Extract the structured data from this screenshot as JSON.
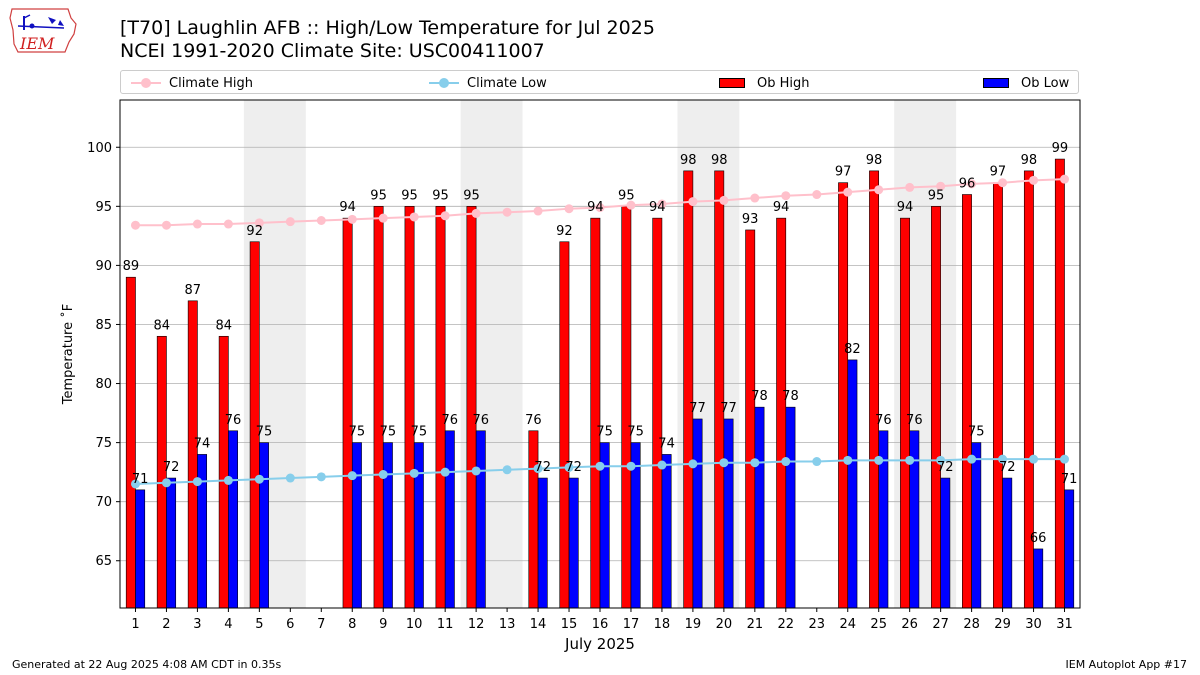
{
  "header": {
    "title_line1": "[T70] Laughlin AFB :: High/Low Temperature for Jul 2025",
    "title_line2": "NCEI 1991-2020 Climate Site: USC00411007"
  },
  "logo": {
    "text": "IEM"
  },
  "legend": {
    "climate_high": "Climate High",
    "climate_low": "Climate Low",
    "ob_high": "Ob High",
    "ob_low": "Ob Low"
  },
  "footer": {
    "generated": "Generated at 22 Aug 2025 4:08 AM CDT in 0.35s",
    "app": "IEM Autoplot App #17"
  },
  "colors": {
    "ob_high": "#ff0000",
    "ob_low": "#0000ff",
    "climate_high": "#ffc0cb",
    "climate_low": "#87ceeb",
    "weekend_shade": "#eeeeee",
    "grid": "#b0b0b0"
  },
  "chart_data": {
    "type": "bar",
    "title": "[T70] Laughlin AFB :: High/Low Temperature for Jul 2025",
    "xlabel": "July 2025",
    "ylabel": "Temperature ˚F",
    "ylim": [
      61,
      104
    ],
    "yticks": [
      65,
      70,
      75,
      80,
      85,
      90,
      95,
      100
    ],
    "grid": true,
    "legend_position": "top",
    "categories": [
      "1",
      "2",
      "3",
      "4",
      "5",
      "6",
      "7",
      "8",
      "9",
      "10",
      "11",
      "12",
      "13",
      "14",
      "15",
      "16",
      "17",
      "18",
      "19",
      "20",
      "21",
      "22",
      "23",
      "24",
      "25",
      "26",
      "27",
      "28",
      "29",
      "30",
      "31"
    ],
    "shaded_weeks": [
      [
        5,
        6
      ],
      [
        12,
        13
      ],
      [
        19,
        20
      ],
      [
        26,
        27
      ]
    ],
    "series": [
      {
        "name": "Ob High",
        "kind": "bar",
        "values": [
          89,
          84,
          87,
          84,
          92,
          null,
          null,
          94,
          95,
          95,
          95,
          95,
          null,
          76,
          92,
          94,
          95,
          94,
          98,
          98,
          93,
          94,
          null,
          97,
          98,
          94,
          95,
          96,
          97,
          98,
          99
        ]
      },
      {
        "name": "Ob Low",
        "kind": "bar",
        "values": [
          71,
          72,
          74,
          76,
          75,
          null,
          null,
          75,
          75,
          75,
          76,
          76,
          null,
          72,
          72,
          75,
          75,
          74,
          77,
          77,
          78,
          78,
          null,
          82,
          76,
          76,
          72,
          75,
          72,
          66,
          71
        ]
      },
      {
        "name": "Climate High",
        "kind": "line",
        "values": [
          93.4,
          93.4,
          93.5,
          93.5,
          93.6,
          93.7,
          93.8,
          93.9,
          94.0,
          94.1,
          94.2,
          94.4,
          94.5,
          94.6,
          94.8,
          94.9,
          95.1,
          95.2,
          95.4,
          95.5,
          95.7,
          95.9,
          96.0,
          96.2,
          96.4,
          96.6,
          96.7,
          96.9,
          97.0,
          97.2,
          97.3
        ]
      },
      {
        "name": "Climate Low",
        "kind": "line",
        "values": [
          71.5,
          71.6,
          71.7,
          71.8,
          71.9,
          72.0,
          72.1,
          72.2,
          72.3,
          72.4,
          72.5,
          72.6,
          72.7,
          72.8,
          72.9,
          73.0,
          73.0,
          73.1,
          73.2,
          73.3,
          73.3,
          73.4,
          73.4,
          73.5,
          73.5,
          73.5,
          73.5,
          73.6,
          73.6,
          73.6,
          73.6
        ]
      }
    ]
  }
}
